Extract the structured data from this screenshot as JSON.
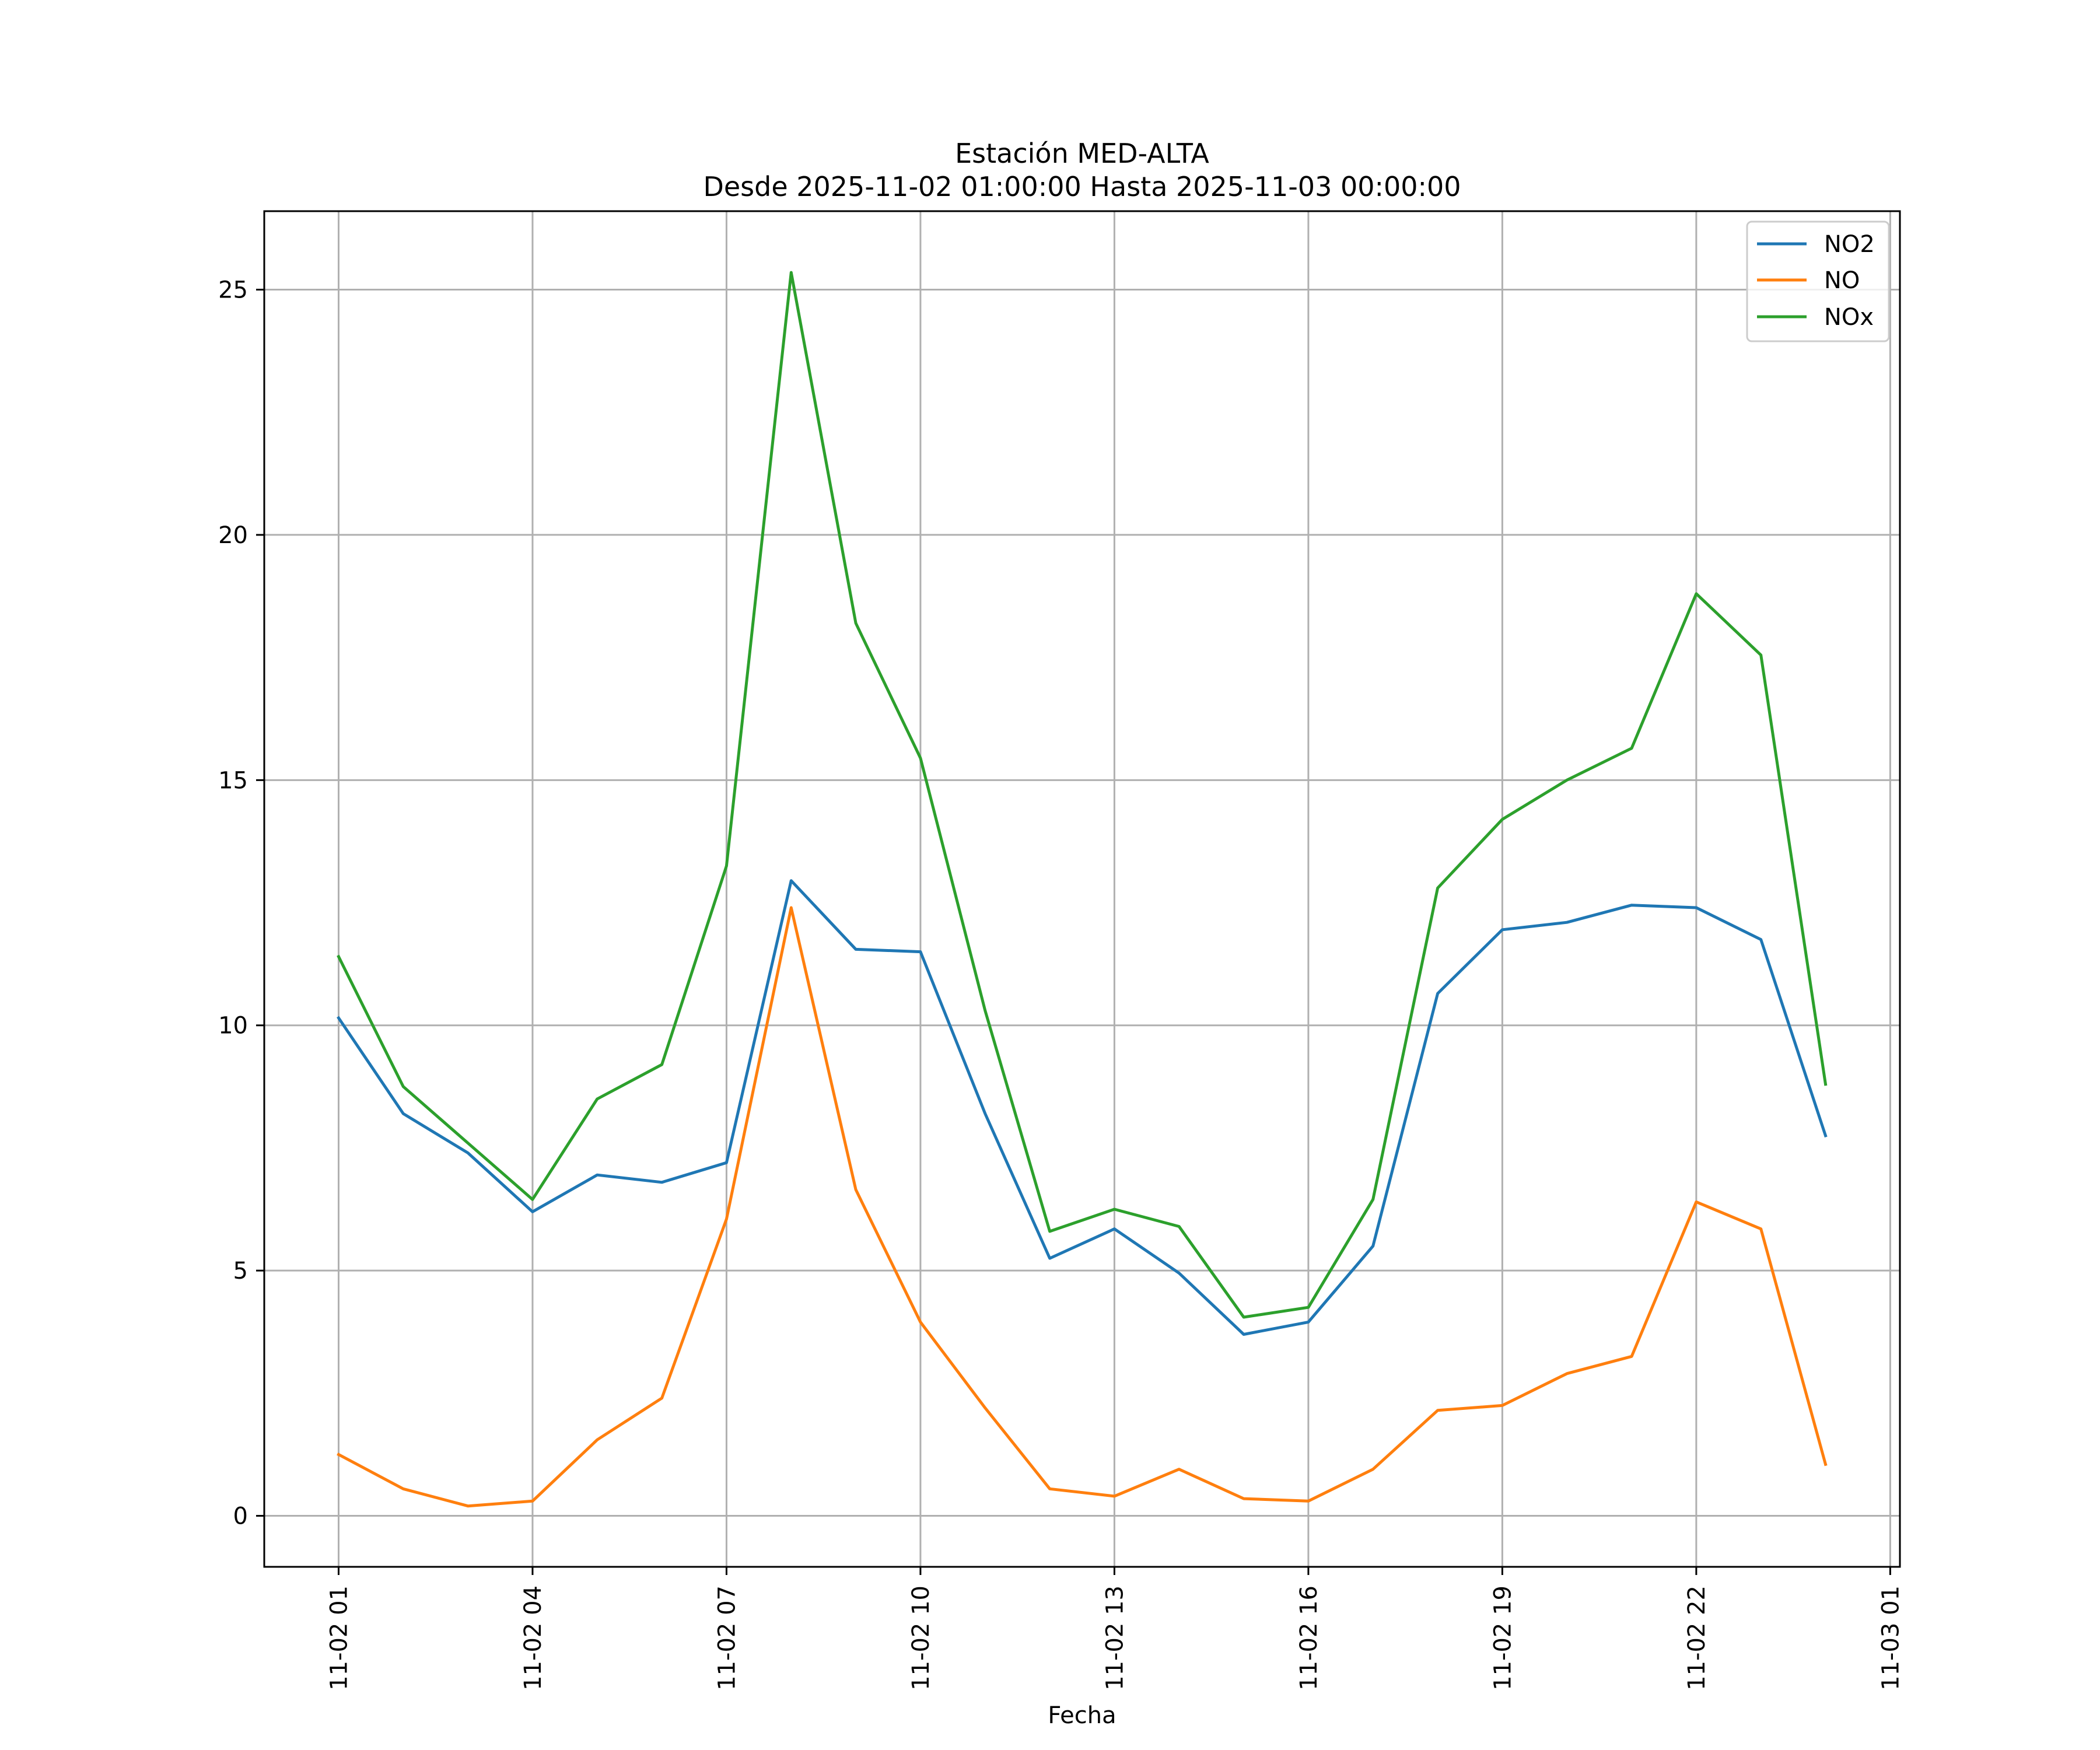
{
  "chart_data": {
    "type": "line",
    "title": "Estación MED-ALTA",
    "subtitle": "Desde 2025-11-02 01:00:00 Hasta 2025-11-03 00:00:00",
    "xlabel": "Fecha",
    "ylabel": "",
    "x_unit": "hours since 2025-11-02 00:00",
    "xlim": [
      -0.15,
      25.15
    ],
    "ylim": [
      -1.04,
      26.6
    ],
    "grid": true,
    "legend_position": "top-right",
    "x": [
      1,
      2,
      3,
      4,
      5,
      6,
      7,
      8,
      9,
      10,
      11,
      12,
      13,
      14,
      15,
      16,
      17,
      18,
      19,
      20,
      21,
      22,
      23,
      24
    ],
    "x_ticks": [
      {
        "value": 1,
        "label": "11-02 01"
      },
      {
        "value": 4,
        "label": "11-02 04"
      },
      {
        "value": 7,
        "label": "11-02 07"
      },
      {
        "value": 10,
        "label": "11-02 10"
      },
      {
        "value": 13,
        "label": "11-02 13"
      },
      {
        "value": 16,
        "label": "11-02 16"
      },
      {
        "value": 19,
        "label": "11-02 19"
      },
      {
        "value": 22,
        "label": "11-02 22"
      },
      {
        "value": 25,
        "label": "11-03 01"
      }
    ],
    "y_ticks": [
      {
        "value": 0,
        "label": "0"
      },
      {
        "value": 5,
        "label": "5"
      },
      {
        "value": 10,
        "label": "10"
      },
      {
        "value": 15,
        "label": "15"
      },
      {
        "value": 20,
        "label": "20"
      },
      {
        "value": 25,
        "label": "25"
      }
    ],
    "series": [
      {
        "name": "NO2",
        "color": "#1f77b4",
        "values": [
          10.15,
          8.2,
          7.4,
          6.2,
          6.95,
          6.8,
          7.2,
          12.95,
          11.55,
          11.5,
          8.2,
          5.25,
          5.85,
          4.95,
          3.7,
          3.95,
          5.5,
          10.65,
          11.95,
          12.1,
          12.45,
          12.4,
          11.75,
          7.75
        ]
      },
      {
        "name": "NO",
        "color": "#ff7f0e",
        "values": [
          1.25,
          0.55,
          0.2,
          0.3,
          1.55,
          2.4,
          6.05,
          12.4,
          6.65,
          3.95,
          2.2,
          0.55,
          0.4,
          0.95,
          0.35,
          0.3,
          0.95,
          2.15,
          2.25,
          2.9,
          3.25,
          6.4,
          5.85,
          1.05
        ]
      },
      {
        "name": "NOx",
        "color": "#2ca02c",
        "values": [
          11.4,
          8.75,
          7.6,
          6.45,
          8.5,
          9.2,
          13.25,
          25.35,
          18.2,
          15.45,
          10.3,
          5.8,
          6.25,
          5.9,
          4.05,
          4.25,
          6.45,
          12.8,
          14.2,
          15.0,
          15.65,
          18.8,
          17.55,
          8.8
        ]
      }
    ]
  }
}
